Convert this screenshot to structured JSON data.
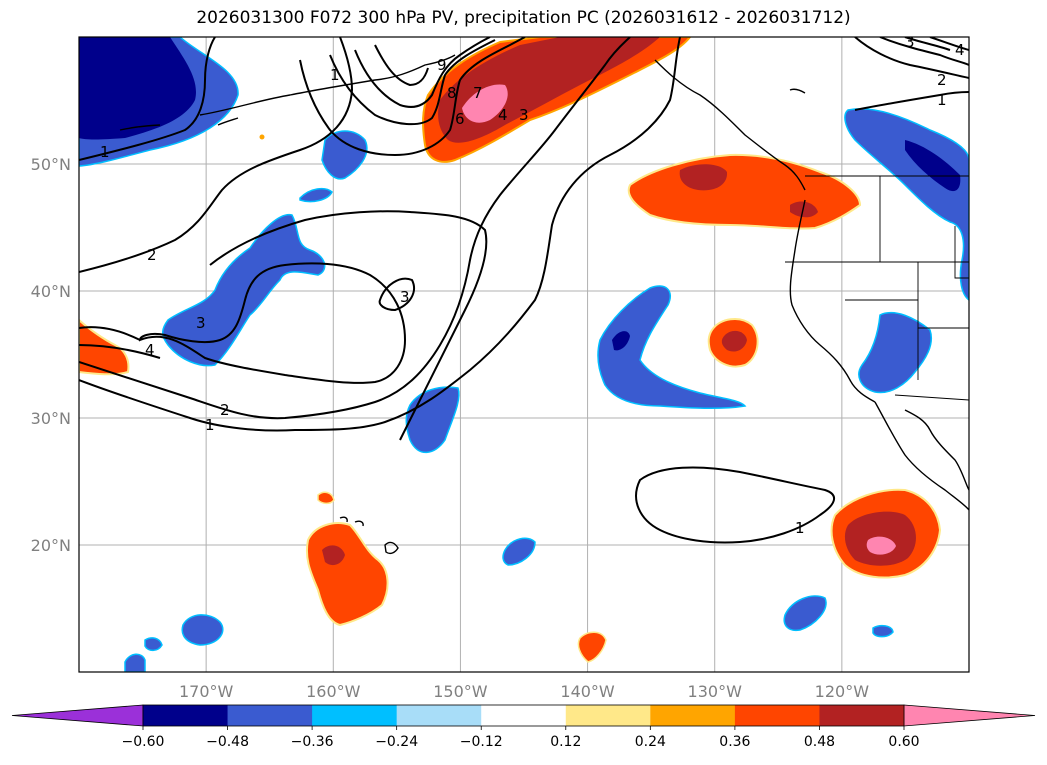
{
  "title": "2026031300 F072 300 hPa PV, precipitation PC (2026031612 - 2026031712)",
  "map": {
    "lat_ticks": [
      {
        "lat": 50,
        "label": "50°N"
      },
      {
        "lat": 40,
        "label": "40°N"
      },
      {
        "lat": 30,
        "label": "30°N"
      },
      {
        "lat": 20,
        "label": "20°N"
      }
    ],
    "lon_ticks": [
      {
        "lon": -170,
        "label": "170°W"
      },
      {
        "lon": -160,
        "label": "160°W"
      },
      {
        "lon": -150,
        "label": "150°W"
      },
      {
        "lon": -140,
        "label": "140°W"
      },
      {
        "lon": -130,
        "label": "130°W"
      },
      {
        "lon": -120,
        "label": "120°W"
      }
    ],
    "pv_contour_labels": [
      "1",
      "2",
      "3",
      "4",
      "6",
      "7",
      "8",
      "9"
    ]
  },
  "colorbar": {
    "labels": [
      "−0.60",
      "−0.48",
      "−0.36",
      "−0.24",
      "−0.12",
      "0.12",
      "0.24",
      "0.36",
      "0.48",
      "0.60"
    ],
    "colors": [
      "#9b30d9",
      "#00008b",
      "#3a5bd0",
      "#00bfff",
      "#a8ddf8",
      "#ffffff",
      "#ffe889",
      "#ffa500",
      "#ff4500",
      "#b22222",
      "#ff85b0"
    ]
  },
  "colors": {
    "neg_dark": "#00008b",
    "neg_mid": "#3a5bd0",
    "neg_light": "#00bfff",
    "pos_yellow": "#ffe889",
    "pos_orange": "#ffa500",
    "pos_red": "#ff4500",
    "pos_darkred": "#b22222",
    "pos_pink": "#ff85b0"
  }
}
